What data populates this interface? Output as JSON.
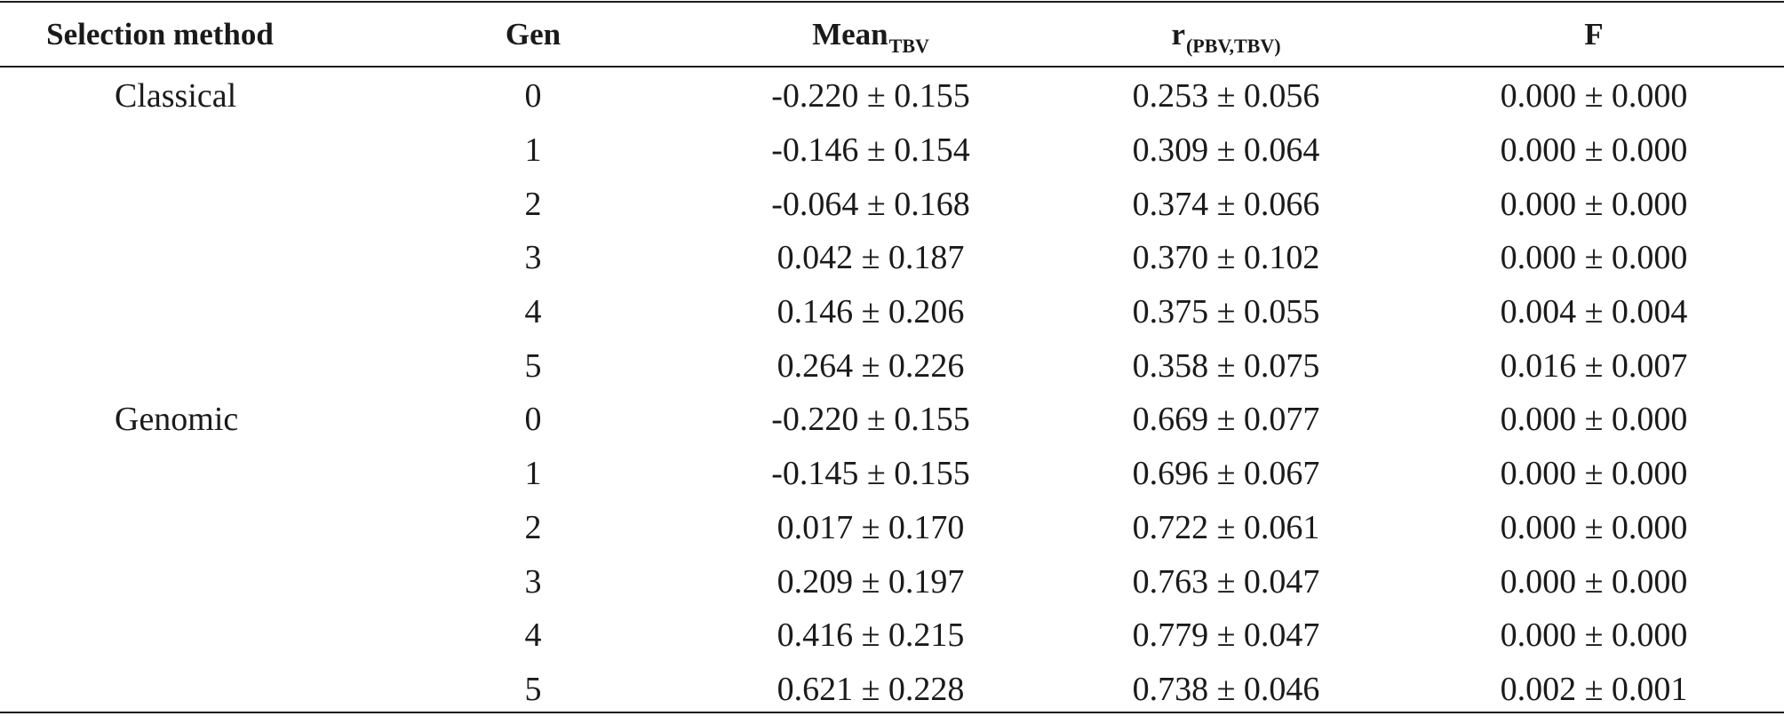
{
  "headers": {
    "method": "Selection method",
    "gen": "Gen",
    "mean_main": "Mean",
    "mean_sub": "TBV",
    "r_main": "r",
    "r_sub": "(PBV,TBV)",
    "f": "F"
  },
  "rows": [
    {
      "method": "Classical",
      "gen": "0",
      "mean": "-0.220 ± 0.155",
      "r": "0.253 ± 0.056",
      "f": "0.000 ± 0.000"
    },
    {
      "method": "",
      "gen": "1",
      "mean": "-0.146 ± 0.154",
      "r": "0.309 ± 0.064",
      "f": "0.000 ± 0.000"
    },
    {
      "method": "",
      "gen": "2",
      "mean": "-0.064 ± 0.168",
      "r": "0.374 ± 0.066",
      "f": "0.000 ± 0.000"
    },
    {
      "method": "",
      "gen": "3",
      "mean": "0.042 ± 0.187",
      "r": "0.370 ± 0.102",
      "f": "0.000 ± 0.000"
    },
    {
      "method": "",
      "gen": "4",
      "mean": "0.146 ± 0.206",
      "r": "0.375 ± 0.055",
      "f": "0.004 ± 0.004"
    },
    {
      "method": "",
      "gen": "5",
      "mean": "0.264 ± 0.226",
      "r": "0.358 ± 0.075",
      "f": "0.016 ± 0.007"
    },
    {
      "method": "Genomic",
      "gen": "0",
      "mean": "-0.220 ± 0.155",
      "r": "0.669 ± 0.077",
      "f": "0.000 ± 0.000"
    },
    {
      "method": "",
      "gen": "1",
      "mean": "-0.145 ± 0.155",
      "r": "0.696 ± 0.067",
      "f": "0.000 ± 0.000"
    },
    {
      "method": "",
      "gen": "2",
      "mean": "0.017 ± 0.170",
      "r": "0.722 ± 0.061",
      "f": "0.000 ± 0.000"
    },
    {
      "method": "",
      "gen": "3",
      "mean": "0.209 ± 0.197",
      "r": "0.763 ± 0.047",
      "f": "0.000 ± 0.000"
    },
    {
      "method": "",
      "gen": "4",
      "mean": "0.416 ± 0.215",
      "r": "0.779 ± 0.047",
      "f": "0.000 ± 0.000"
    },
    {
      "method": "",
      "gen": "5",
      "mean": "0.621 ± 0.228",
      "r": "0.738 ± 0.046",
      "f": "0.002 ± 0.001"
    }
  ]
}
